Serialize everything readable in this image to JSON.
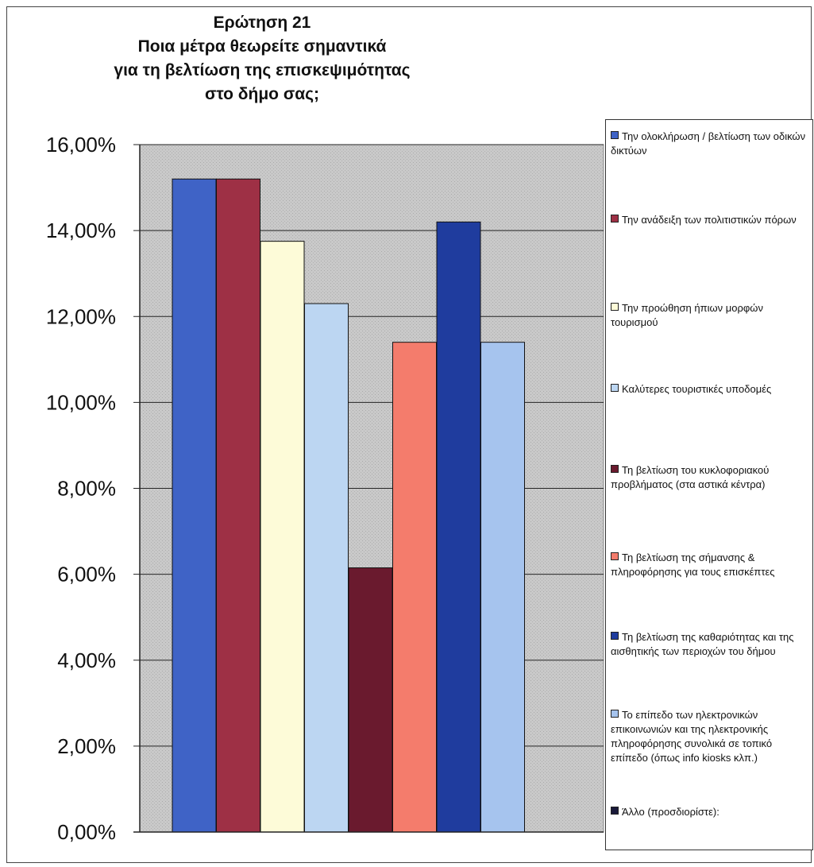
{
  "chart_data": {
    "type": "bar",
    "title_lines": [
      "Ερώτηση 21",
      "Ποια μέτρα θεωρείτε σημαντικά",
      "για τη βελτίωση της επισκεψιμότητας",
      "στο δήμο σας;"
    ],
    "ylim": [
      0,
      16
    ],
    "yticks": [
      {
        "value": 0,
        "label": "0,00%"
      },
      {
        "value": 2,
        "label": "2,00%"
      },
      {
        "value": 4,
        "label": "4,00%"
      },
      {
        "value": 6,
        "label": "6,00%"
      },
      {
        "value": 8,
        "label": "8,00%"
      },
      {
        "value": 10,
        "label": "10,00%"
      },
      {
        "value": 12,
        "label": "12,00%"
      },
      {
        "value": 14,
        "label": "14,00%"
      },
      {
        "value": 16,
        "label": "16,00%"
      }
    ],
    "grid": true,
    "legend_position": "right",
    "series": [
      {
        "name": "Την ολοκλήρωση / βελτίωση των οδικών δικτύων",
        "value": 15.2,
        "color": "#3f63c6"
      },
      {
        "name": "Την ανάδειξη των πολιτιστικών πόρων",
        "value": 15.2,
        "color": "#9e3045"
      },
      {
        "name": "Την προώθηση ήπιων μορφών τουρισμού",
        "value": 13.75,
        "color": "#fdfbd8"
      },
      {
        "name": "Καλύτερες τουριστικές υποδομές",
        "value": 12.3,
        "color": "#bcd6f2"
      },
      {
        "name": "Τη βελτίωση του κυκλοφοριακού προβλήματος (στα αστικά κέντρα)",
        "value": 6.15,
        "color": "#6a1a2e"
      },
      {
        "name": "Τη βελτίωση της σήμανσης & πληροφόρησης για τους επισκέπτες",
        "value": 11.4,
        "color": "#f47c6c"
      },
      {
        "name": "Τη βελτίωση της καθαριότητας και της αισθητικής των περιοχών του δήμου",
        "value": 14.2,
        "color": "#1f3c9e"
      },
      {
        "name": "Το επίπεδο των ηλεκτρονικών επικοινωνιών και της ηλεκτρονικής πληροφόρησης συνολικά σε τοπικό επίπεδο (όπως info kiosks κλπ.)",
        "value": 11.4,
        "color": "#a6c4ee"
      },
      {
        "name": "Άλλο (προσδιορίστε):",
        "value": 0,
        "color": "#1a1a3a"
      }
    ]
  }
}
